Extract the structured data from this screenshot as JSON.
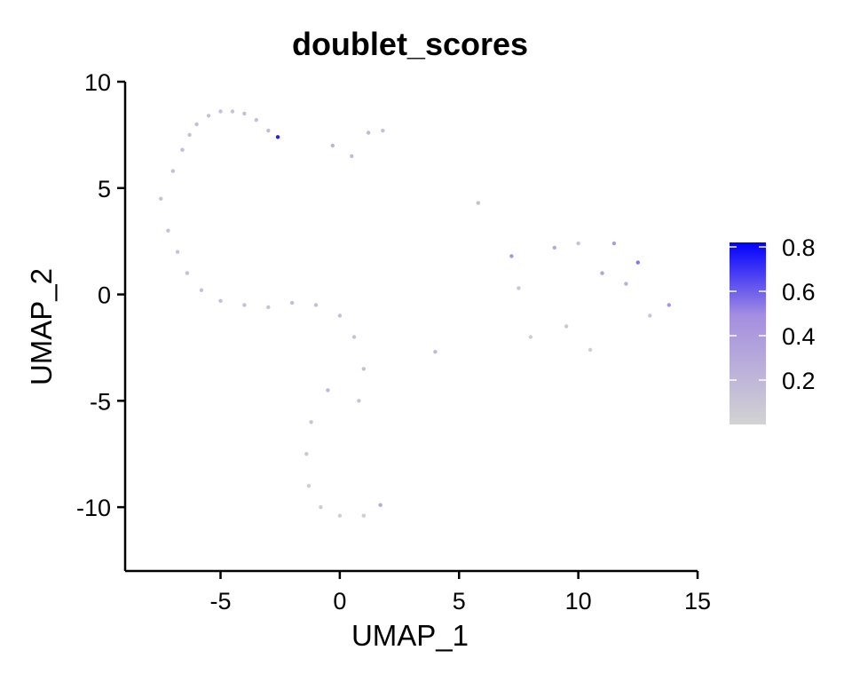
{
  "chart_data": {
    "type": "scatter",
    "title": "doublet_scores",
    "xlabel": "UMAP_1",
    "ylabel": "UMAP_2",
    "xlim": [
      -9,
      15
    ],
    "ylim": [
      -13,
      10
    ],
    "xticks": [
      -5,
      0,
      5,
      10,
      15
    ],
    "xtick_labels": [
      "-5",
      "0",
      "5",
      "10",
      "15"
    ],
    "yticks": [
      10,
      5,
      0,
      -5,
      -10
    ],
    "ytick_labels": [
      "10",
      "5",
      "0",
      "-5",
      "-10"
    ],
    "grid": false,
    "legend_position": "right",
    "colorbar": {
      "min": 0.0,
      "max": 0.82,
      "ticks": [
        0.8,
        0.6,
        0.4,
        0.2
      ],
      "tick_labels": [
        "0.8",
        "0.6",
        "0.4",
        "0.2"
      ],
      "low_color": "#d3d3d3",
      "high_color": "#0000ff"
    },
    "points": [
      {
        "x": -7.5,
        "y": 4.5,
        "score": 0.12
      },
      {
        "x": -7.2,
        "y": 3.0,
        "score": 0.14
      },
      {
        "x": -7.0,
        "y": 5.8,
        "score": 0.15
      },
      {
        "x": -6.8,
        "y": 2.0,
        "score": 0.13
      },
      {
        "x": -6.6,
        "y": 6.8,
        "score": 0.16
      },
      {
        "x": -6.3,
        "y": 7.5,
        "score": 0.14
      },
      {
        "x": -6.0,
        "y": 8.0,
        "score": 0.15
      },
      {
        "x": -5.5,
        "y": 8.4,
        "score": 0.13
      },
      {
        "x": -5.0,
        "y": 8.6,
        "score": 0.14
      },
      {
        "x": -4.5,
        "y": 8.6,
        "score": 0.12
      },
      {
        "x": -4.0,
        "y": 8.5,
        "score": 0.15
      },
      {
        "x": -3.5,
        "y": 8.2,
        "score": 0.13
      },
      {
        "x": -3.0,
        "y": 7.7,
        "score": 0.16
      },
      {
        "x": -2.6,
        "y": 7.4,
        "score": 0.75
      },
      {
        "x": -6.4,
        "y": 1.0,
        "score": 0.14
      },
      {
        "x": -5.8,
        "y": 0.2,
        "score": 0.13
      },
      {
        "x": -5.0,
        "y": -0.3,
        "score": 0.15
      },
      {
        "x": -4.0,
        "y": -0.5,
        "score": 0.14
      },
      {
        "x": -3.0,
        "y": -0.6,
        "score": 0.13
      },
      {
        "x": -2.0,
        "y": -0.4,
        "score": 0.15
      },
      {
        "x": -1.0,
        "y": -0.5,
        "score": 0.16
      },
      {
        "x": 0.0,
        "y": -1.0,
        "score": 0.14
      },
      {
        "x": 0.6,
        "y": -2.0,
        "score": 0.13
      },
      {
        "x": 1.0,
        "y": -3.5,
        "score": 0.15
      },
      {
        "x": 0.8,
        "y": -5.0,
        "score": 0.12
      },
      {
        "x": -0.5,
        "y": -4.5,
        "score": 0.2
      },
      {
        "x": -1.2,
        "y": -6.0,
        "score": 0.13
      },
      {
        "x": -1.4,
        "y": -7.5,
        "score": 0.08
      },
      {
        "x": -1.3,
        "y": -9.0,
        "score": 0.05
      },
      {
        "x": -0.8,
        "y": -10.0,
        "score": 0.04
      },
      {
        "x": 0.0,
        "y": -10.4,
        "score": 0.03
      },
      {
        "x": 1.0,
        "y": -10.4,
        "score": 0.04
      },
      {
        "x": 1.7,
        "y": -9.9,
        "score": 0.3
      },
      {
        "x": -0.3,
        "y": 7.0,
        "score": 0.22
      },
      {
        "x": 0.5,
        "y": 6.5,
        "score": 0.18
      },
      {
        "x": 1.2,
        "y": 7.6,
        "score": 0.2
      },
      {
        "x": 1.8,
        "y": 7.7,
        "score": 0.14
      },
      {
        "x": 5.8,
        "y": 4.3,
        "score": 0.15
      },
      {
        "x": 4.0,
        "y": -2.7,
        "score": 0.18
      },
      {
        "x": 7.2,
        "y": 1.8,
        "score": 0.45
      },
      {
        "x": 7.5,
        "y": 0.3,
        "score": 0.1
      },
      {
        "x": 8.0,
        "y": -2.0,
        "score": 0.04
      },
      {
        "x": 9.0,
        "y": 2.2,
        "score": 0.3
      },
      {
        "x": 10.0,
        "y": 2.4,
        "score": 0.12
      },
      {
        "x": 11.0,
        "y": 1.0,
        "score": 0.35
      },
      {
        "x": 11.5,
        "y": 2.4,
        "score": 0.4
      },
      {
        "x": 12.0,
        "y": 0.5,
        "score": 0.25
      },
      {
        "x": 12.5,
        "y": 1.5,
        "score": 0.55
      },
      {
        "x": 13.0,
        "y": -1.0,
        "score": 0.1
      },
      {
        "x": 13.8,
        "y": -0.5,
        "score": 0.45
      },
      {
        "x": 10.5,
        "y": -2.6,
        "score": 0.05
      },
      {
        "x": 9.5,
        "y": -1.5,
        "score": 0.08
      }
    ]
  }
}
